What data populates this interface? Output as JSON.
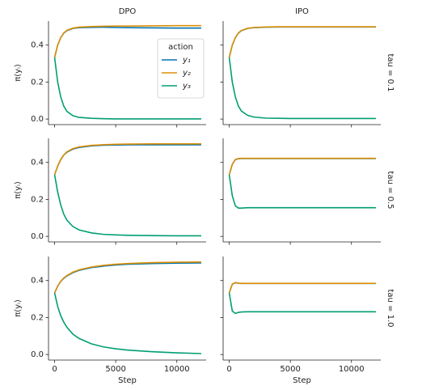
{
  "chart_data": [
    {
      "type": "line",
      "title": "DPO",
      "y_label": "π(yᵢ)",
      "legend_title": "action",
      "x": [
        0,
        250,
        500,
        750,
        1000,
        1500,
        2000,
        3000,
        4000,
        5000,
        6000,
        8000,
        10000,
        12000
      ],
      "series": [
        {
          "name": "y₁",
          "color": "#0173b2",
          "values": [
            0.333,
            0.4,
            0.44,
            0.465,
            0.478,
            0.49,
            0.494,
            0.496,
            0.497,
            0.495,
            0.494,
            0.493,
            0.492,
            0.492
          ]
        },
        {
          "name": "y₂",
          "color": "#de8f05",
          "values": [
            0.333,
            0.4,
            0.44,
            0.466,
            0.48,
            0.492,
            0.497,
            0.5,
            0.502,
            0.503,
            0.503,
            0.504,
            0.505,
            0.505
          ]
        },
        {
          "name": "y₃",
          "color": "#029e73",
          "values": [
            0.333,
            0.2,
            0.12,
            0.07,
            0.042,
            0.018,
            0.009,
            0.004,
            0.002,
            0.001,
            0.001,
            0.001,
            0.001,
            0.001
          ]
        }
      ],
      "xlim": [
        -500,
        12400
      ],
      "xticks": [
        0,
        5000,
        10000
      ],
      "ylim": [
        -0.03,
        0.53
      ],
      "yticks": [
        {
          "value": 0,
          "label": "0.0"
        },
        0.2,
        0.4
      ]
    },
    {
      "type": "line",
      "title": "IPO",
      "row_label": "tau = 0.1",
      "x": [
        0,
        250,
        500,
        750,
        1000,
        1500,
        2000,
        3000,
        4000,
        5000,
        6000,
        8000,
        10000,
        12000
      ],
      "series": [
        {
          "color": "#0173b2",
          "values": [
            0.333,
            0.4,
            0.44,
            0.465,
            0.478,
            0.49,
            0.494,
            0.497,
            0.498,
            0.498,
            0.498,
            0.498,
            0.498,
            0.498
          ]
        },
        {
          "color": "#de8f05",
          "values": [
            0.333,
            0.4,
            0.44,
            0.466,
            0.479,
            0.491,
            0.495,
            0.498,
            0.499,
            0.499,
            0.499,
            0.499,
            0.499,
            0.499
          ]
        },
        {
          "color": "#029e73",
          "values": [
            0.333,
            0.2,
            0.12,
            0.07,
            0.043,
            0.02,
            0.011,
            0.005,
            0.004,
            0.003,
            0.003,
            0.003,
            0.003,
            0.003
          ]
        }
      ],
      "xlim": [
        -500,
        12400
      ],
      "xticks": [
        0,
        5000,
        10000
      ],
      "ylim": [
        -0.03,
        0.53
      ],
      "yticks": [
        0,
        0.2,
        0.4
      ]
    },
    {
      "type": "line",
      "y_label": "π(yᵢ)",
      "x": [
        0,
        250,
        500,
        750,
        1000,
        1500,
        2000,
        3000,
        4000,
        5000,
        6000,
        8000,
        10000,
        12000
      ],
      "series": [
        {
          "color": "#0173b2",
          "values": [
            0.333,
            0.38,
            0.415,
            0.44,
            0.455,
            0.472,
            0.481,
            0.489,
            0.493,
            0.494,
            0.495,
            0.495,
            0.495,
            0.495
          ]
        },
        {
          "color": "#de8f05",
          "values": [
            0.333,
            0.38,
            0.416,
            0.441,
            0.457,
            0.475,
            0.484,
            0.492,
            0.496,
            0.498,
            0.499,
            0.5,
            0.5,
            0.5
          ]
        },
        {
          "color": "#029e73",
          "values": [
            0.333,
            0.24,
            0.17,
            0.12,
            0.088,
            0.053,
            0.035,
            0.019,
            0.011,
            0.008,
            0.006,
            0.004,
            0.003,
            0.003
          ]
        }
      ],
      "xlim": [
        -500,
        12400
      ],
      "xticks": [
        0,
        5000,
        10000
      ],
      "ylim": [
        -0.03,
        0.53
      ],
      "yticks": [
        {
          "value": 0,
          "label": "0.0"
        },
        0.2,
        0.4
      ]
    },
    {
      "type": "line",
      "row_label": "tau = 0.5",
      "x": [
        0,
        250,
        500,
        750,
        1000,
        1500,
        2000,
        3000,
        4000,
        5000,
        6000,
        8000,
        10000,
        12000
      ],
      "series": [
        {
          "color": "#0173b2",
          "values": [
            0.333,
            0.39,
            0.415,
            0.42,
            0.421,
            0.421,
            0.421,
            0.421,
            0.421,
            0.421,
            0.421,
            0.421,
            0.421,
            0.421
          ]
        },
        {
          "color": "#de8f05",
          "values": [
            0.333,
            0.39,
            0.416,
            0.421,
            0.422,
            0.422,
            0.422,
            0.422,
            0.422,
            0.422,
            0.422,
            0.422,
            0.422,
            0.422
          ]
        },
        {
          "color": "#029e73",
          "values": [
            0.333,
            0.22,
            0.165,
            0.153,
            0.153,
            0.155,
            0.155,
            0.155,
            0.155,
            0.155,
            0.155,
            0.155,
            0.155,
            0.155
          ]
        }
      ],
      "xlim": [
        -500,
        12400
      ],
      "xticks": [
        0,
        5000,
        10000
      ],
      "ylim": [
        -0.03,
        0.53
      ],
      "yticks": [
        0,
        0.2,
        0.4
      ]
    },
    {
      "type": "line",
      "y_label": "π(yᵢ)",
      "x_label": "Step",
      "x": [
        0,
        250,
        500,
        750,
        1000,
        1500,
        2000,
        3000,
        4000,
        5000,
        6000,
        8000,
        10000,
        12000
      ],
      "series": [
        {
          "color": "#0173b2",
          "values": [
            0.333,
            0.37,
            0.395,
            0.412,
            0.425,
            0.443,
            0.455,
            0.47,
            0.478,
            0.484,
            0.488,
            0.492,
            0.494,
            0.495
          ]
        },
        {
          "color": "#de8f05",
          "values": [
            0.333,
            0.37,
            0.396,
            0.414,
            0.427,
            0.446,
            0.458,
            0.473,
            0.482,
            0.488,
            0.492,
            0.497,
            0.499,
            0.5
          ]
        },
        {
          "color": "#029e73",
          "values": [
            0.333,
            0.26,
            0.21,
            0.175,
            0.148,
            0.11,
            0.087,
            0.058,
            0.041,
            0.031,
            0.024,
            0.015,
            0.009,
            0.005
          ]
        }
      ],
      "xlim": [
        -500,
        12400
      ],
      "xticks": [
        0,
        5000,
        10000
      ],
      "ylim": [
        -0.03,
        0.53
      ],
      "yticks": [
        {
          "value": 0,
          "label": "0.0"
        },
        0.2,
        0.4
      ]
    },
    {
      "type": "line",
      "row_label": "tau = 1.0",
      "x_label": "Step",
      "x": [
        0,
        250,
        500,
        750,
        1000,
        1500,
        2000,
        3000,
        4000,
        5000,
        6000,
        8000,
        10000,
        12000
      ],
      "series": [
        {
          "color": "#0173b2",
          "values": [
            0.333,
            0.38,
            0.388,
            0.385,
            0.384,
            0.384,
            0.384,
            0.384,
            0.384,
            0.384,
            0.384,
            0.384,
            0.384,
            0.384
          ]
        },
        {
          "color": "#de8f05",
          "values": [
            0.333,
            0.381,
            0.389,
            0.386,
            0.385,
            0.385,
            0.385,
            0.385,
            0.385,
            0.385,
            0.385,
            0.385,
            0.385,
            0.385
          ]
        },
        {
          "color": "#029e73",
          "values": [
            0.333,
            0.235,
            0.222,
            0.228,
            0.23,
            0.231,
            0.231,
            0.231,
            0.231,
            0.231,
            0.231,
            0.231,
            0.231,
            0.231
          ]
        }
      ],
      "xlim": [
        -500,
        12400
      ],
      "xticks": [
        0,
        5000,
        10000
      ],
      "ylim": [
        -0.03,
        0.53
      ],
      "yticks": [
        0,
        0.2,
        0.4
      ]
    }
  ]
}
